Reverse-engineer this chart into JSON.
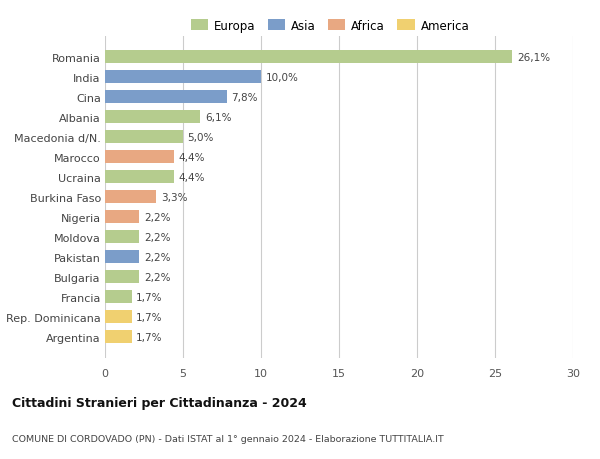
{
  "countries": [
    "Romania",
    "India",
    "Cina",
    "Albania",
    "Macedonia d/N.",
    "Marocco",
    "Ucraina",
    "Burkina Faso",
    "Nigeria",
    "Moldova",
    "Pakistan",
    "Bulgaria",
    "Francia",
    "Rep. Dominicana",
    "Argentina"
  ],
  "values": [
    26.1,
    10.0,
    7.8,
    6.1,
    5.0,
    4.4,
    4.4,
    3.3,
    2.2,
    2.2,
    2.2,
    2.2,
    1.7,
    1.7,
    1.7
  ],
  "labels": [
    "26,1%",
    "10,0%",
    "7,8%",
    "6,1%",
    "5,0%",
    "4,4%",
    "4,4%",
    "3,3%",
    "2,2%",
    "2,2%",
    "2,2%",
    "2,2%",
    "1,7%",
    "1,7%",
    "1,7%"
  ],
  "continents": [
    "Europa",
    "Asia",
    "Asia",
    "Europa",
    "Europa",
    "Africa",
    "Europa",
    "Africa",
    "Africa",
    "Europa",
    "Asia",
    "Europa",
    "Europa",
    "America",
    "America"
  ],
  "colors": {
    "Europa": "#b5cc8e",
    "Asia": "#7b9dc9",
    "Africa": "#e8a882",
    "America": "#f0d070"
  },
  "legend_order": [
    "Europa",
    "Asia",
    "Africa",
    "America"
  ],
  "title": "Cittadini Stranieri per Cittadinanza - 2024",
  "subtitle": "COMUNE DI CORDOVADO (PN) - Dati ISTAT al 1° gennaio 2024 - Elaborazione TUTTITALIA.IT",
  "xlim": [
    0,
    30
  ],
  "xticks": [
    0,
    5,
    10,
    15,
    20,
    25,
    30
  ],
  "grid_color": "#cccccc",
  "bg_color": "#ffffff",
  "bar_height": 0.65
}
